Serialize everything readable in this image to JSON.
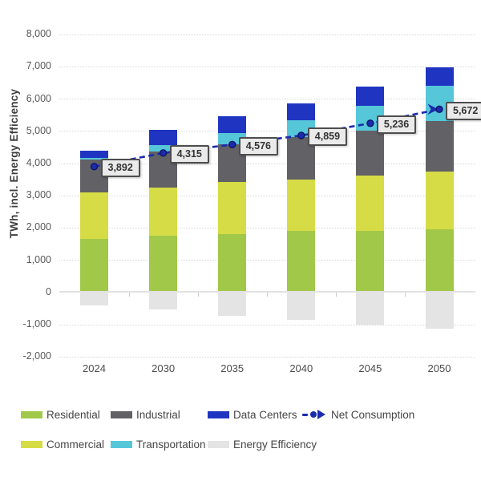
{
  "chart_data": {
    "type": "bar",
    "stacked": true,
    "title": "",
    "ylabel": "TWh, incl. Energy Efficiency",
    "xlabel": "",
    "ylim": [
      -2000,
      8000
    ],
    "ytick_step": 1000,
    "grid": "dotted-horizontal",
    "legend_position": "bottom",
    "categories": [
      "2024",
      "2030",
      "2035",
      "2040",
      "2045",
      "2050"
    ],
    "series": [
      {
        "name": "Residential",
        "color": "#a2c84a",
        "values": [
          1650,
          1750,
          1800,
          1900,
          1900,
          1950
        ]
      },
      {
        "name": "Commercial",
        "color": "#d6dc45",
        "values": [
          1450,
          1500,
          1625,
          1600,
          1725,
          1780
        ]
      },
      {
        "name": "Industrial",
        "color": "#616166",
        "values": [
          1000,
          1100,
          1150,
          1300,
          1380,
          1570
        ]
      },
      {
        "name": "Transportation",
        "color": "#55c7d8",
        "values": [
          60,
          200,
          350,
          525,
          770,
          1095
        ]
      },
      {
        "name": "Data Centers",
        "color": "#1f35c2",
        "values": [
          215,
          470,
          530,
          530,
          610,
          580
        ]
      },
      {
        "name": "Energy Efficiency",
        "color": "#e4e4e4",
        "values": [
          -420,
          -545,
          -745,
          -860,
          -1010,
          -1145
        ]
      }
    ],
    "line_series": {
      "name": "Net Consumption",
      "color": "#1a2cad",
      "dot_edge_color": "#0d1467",
      "style": "dashed",
      "arrow_end": true,
      "values": [
        3892,
        4315,
        4576,
        4859,
        5236,
        5672
      ],
      "labels": [
        "3,892",
        "4,315",
        "4,576",
        "4,859",
        "5,236",
        "5,672"
      ]
    },
    "yticks": [
      {
        "v": 8000,
        "label": "8,000"
      },
      {
        "v": 7000,
        "label": "7,000"
      },
      {
        "v": 6000,
        "label": "6,000"
      },
      {
        "v": 5000,
        "label": "5,000"
      },
      {
        "v": 4000,
        "label": "4,000"
      },
      {
        "v": 3000,
        "label": "3,000"
      },
      {
        "v": 2000,
        "label": "2,000"
      },
      {
        "v": 1000,
        "label": "1,000"
      },
      {
        "v": 0,
        "label": "0"
      },
      {
        "v": -1000,
        "label": "-1,000"
      },
      {
        "v": -2000,
        "label": "-2,000"
      }
    ],
    "legend_rows": [
      [
        "Residential",
        "Industrial",
        "Data Centers",
        "Net Consumption"
      ],
      [
        "Commercial",
        "Transportation",
        "Energy Efficiency"
      ]
    ]
  },
  "colors": {
    "background": "#ffffff",
    "gridline": "#d9d9d9",
    "zero_axis": "#e2e2e2",
    "axis_tick": "#cccccc",
    "ytick_text": "#595959",
    "xtick_text": "#4c4c4c",
    "ytitle_text": "#3e3e3e",
    "legend_text": "#454545",
    "label_box_bg": "#eaeaea",
    "label_box_border": "#4d4d4d",
    "label_box_text": "#333333"
  }
}
